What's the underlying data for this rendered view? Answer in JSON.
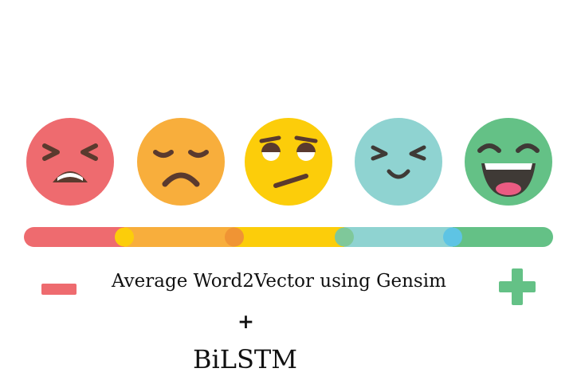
{
  "scale": {
    "faces": [
      {
        "name": "angry-face-icon",
        "color": "#ee6b6f"
      },
      {
        "name": "sad-face-icon",
        "color": "#f8ae3c"
      },
      {
        "name": "skeptical-face-icon",
        "color": "#fccd0a"
      },
      {
        "name": "content-face-icon",
        "color": "#8fd3d1"
      },
      {
        "name": "laughing-face-icon",
        "color": "#64c186"
      }
    ],
    "bar_colors": [
      "#ee6b6f",
      "#f8ae3c",
      "#fccd0a",
      "#8fd3d1",
      "#64c186"
    ],
    "negative_icon": "minus-icon",
    "positive_icon": "plus-icon"
  },
  "caption": {
    "line1": "Average Word2Vector using Gensim",
    "line2": "+",
    "line3": "BiLSTM"
  }
}
